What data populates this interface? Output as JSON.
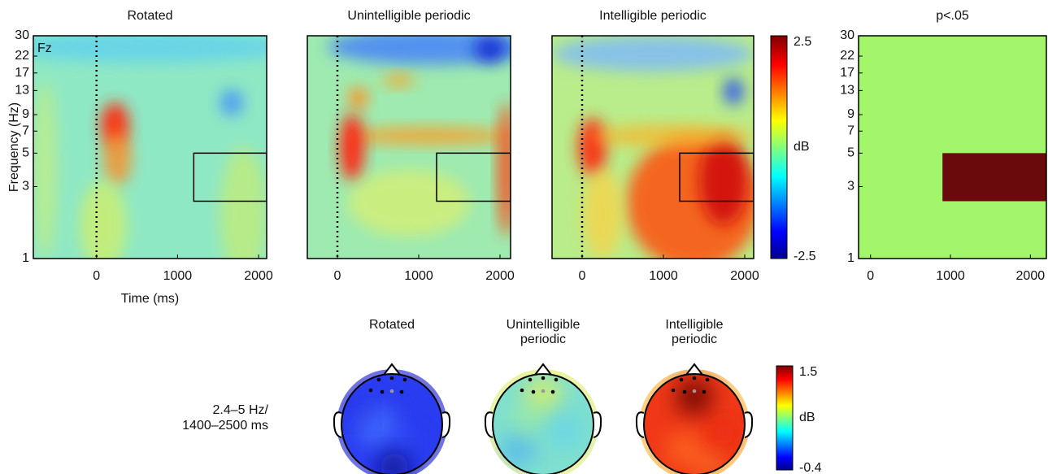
{
  "chart_data": [
    {
      "type": "heatmap",
      "title": "Rotated",
      "annotation": "Fz",
      "xlabel": "Time (ms)",
      "ylabel": "Frequency (Hz)",
      "xlim": [
        -780,
        2100
      ],
      "xticks": [
        0,
        1000,
        2000
      ],
      "ylim": [
        1,
        30
      ],
      "yticks": [
        1,
        3,
        5,
        7,
        9,
        13,
        17,
        22,
        30
      ],
      "yscale": "log",
      "event_line": 0,
      "box": {
        "x": [
          1200,
          2100
        ],
        "y": [
          2.4,
          5
        ]
      }
    },
    {
      "type": "heatmap",
      "title": "Unintelligible periodic",
      "xlim": [
        -370,
        2130
      ],
      "xticks": [
        0,
        1000,
        2000
      ],
      "ylim": [
        1,
        30
      ],
      "yscale": "log",
      "event_line": 0,
      "box": {
        "x": [
          1220,
          2130
        ],
        "y": [
          2.4,
          5
        ]
      }
    },
    {
      "type": "heatmap",
      "title": "Intelligible periodic",
      "xlim": [
        -370,
        2110
      ],
      "xticks": [
        0,
        1000,
        2000
      ],
      "ylim": [
        1,
        30
      ],
      "yscale": "log",
      "event_line": 0,
      "box": {
        "x": [
          1200,
          2110
        ],
        "y": [
          2.4,
          5
        ]
      },
      "colorbar": {
        "label": "dB",
        "lim": [
          -2.5,
          2.5
        ],
        "ticks": [
          -2.5,
          2.5
        ]
      }
    },
    {
      "type": "mask",
      "title": "p<.05",
      "xlim": [
        -150,
        2200
      ],
      "xticks": [
        0,
        1000,
        2000
      ],
      "ylim": [
        1,
        30
      ],
      "yticks": [
        1,
        3,
        5,
        7,
        9,
        13,
        17,
        22,
        30
      ],
      "yscale": "log",
      "mask": {
        "x": [
          900,
          2200
        ],
        "y": [
          2.4,
          5
        ]
      },
      "colors": [
        "#a3f56b",
        "#6a0a0c"
      ]
    },
    {
      "type": "topomap",
      "titles": [
        [
          "Rotated"
        ],
        [
          "Unintelligible",
          "periodic"
        ],
        [
          "Intelligible",
          "periodic"
        ]
      ],
      "row_label": [
        "2.4–5 Hz/",
        "1400–2500 ms"
      ],
      "colorbar": {
        "label": "dB",
        "lim": [
          -0.4,
          1.5
        ],
        "ticks": [
          -0.4,
          1.5
        ]
      }
    }
  ]
}
